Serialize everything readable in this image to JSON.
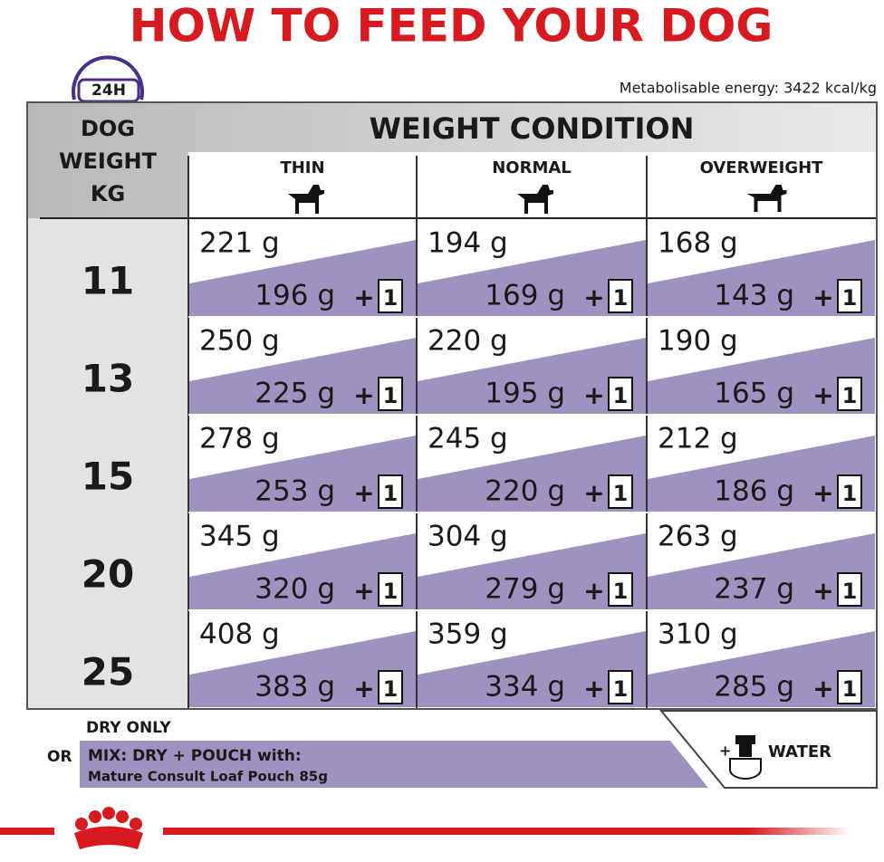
{
  "header": {
    "title": "HOW TO FEED YOUR DOG",
    "badge": "24H",
    "energy": "Metabolisable energy: 3422 kcal/kg"
  },
  "table": {
    "weight_header": [
      "DOG",
      "WEIGHT",
      "KG"
    ],
    "condition_header": "WEIGHT CONDITION",
    "columns": [
      "THIN",
      "NORMAL",
      "OVERWEIGHT"
    ],
    "plus": "+",
    "pouch_count": "1",
    "rows": [
      {
        "weight": "11",
        "cells": [
          {
            "dry": "221 g",
            "mix": "196 g"
          },
          {
            "dry": "194 g",
            "mix": "169 g"
          },
          {
            "dry": "168 g",
            "mix": "143 g"
          }
        ]
      },
      {
        "weight": "13",
        "cells": [
          {
            "dry": "250 g",
            "mix": "225 g"
          },
          {
            "dry": "220 g",
            "mix": "195 g"
          },
          {
            "dry": "190 g",
            "mix": "165 g"
          }
        ]
      },
      {
        "weight": "15",
        "cells": [
          {
            "dry": "278 g",
            "mix": "253 g"
          },
          {
            "dry": "245 g",
            "mix": "220 g"
          },
          {
            "dry": "212 g",
            "mix": "186 g"
          }
        ]
      },
      {
        "weight": "20",
        "cells": [
          {
            "dry": "345 g",
            "mix": "320 g"
          },
          {
            "dry": "304 g",
            "mix": "279 g"
          },
          {
            "dry": "263 g",
            "mix": "237 g"
          }
        ]
      },
      {
        "weight": "25",
        "cells": [
          {
            "dry": "408 g",
            "mix": "383 g"
          },
          {
            "dry": "359 g",
            "mix": "334 g"
          },
          {
            "dry": "310 g",
            "mix": "285 g"
          }
        ]
      }
    ]
  },
  "footer": {
    "dry_only": "DRY ONLY",
    "or": "OR",
    "mix": "MIX: DRY + POUCH with:",
    "pouch": "Mature Consult Loaf Pouch 85g",
    "water_plus": "+",
    "water": "WATER"
  }
}
